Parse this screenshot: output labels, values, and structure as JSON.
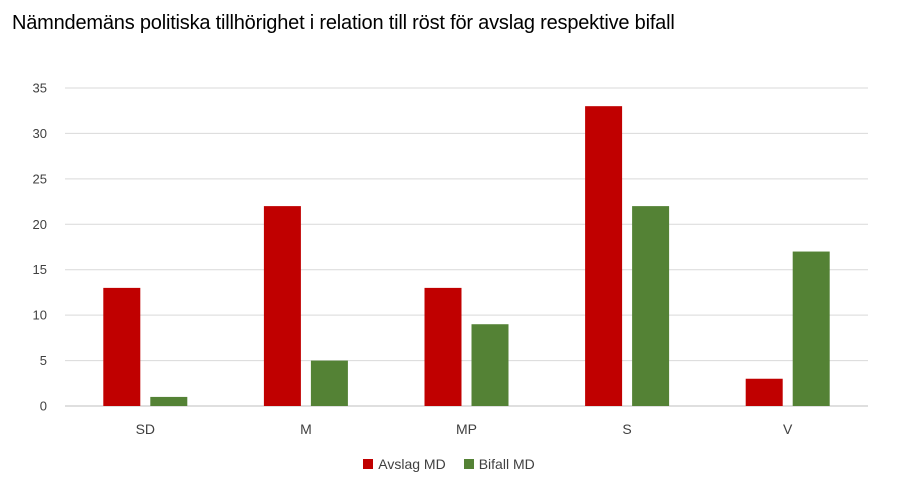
{
  "title": "Nämndemäns politiska tillhörighet i relation till röst för avslag respektive bifall",
  "chart_data": {
    "type": "bar",
    "title": "Nämndemäns politiska tillhörighet i relation till röst för avslag respektive bifall",
    "categories": [
      "SD",
      "M",
      "MP",
      "S",
      "V"
    ],
    "series": [
      {
        "name": "Avslag MD",
        "color": "#C00000",
        "values": [
          13,
          22,
          13,
          33,
          3
        ]
      },
      {
        "name": "Bifall MD",
        "color": "#548235",
        "values": [
          1,
          5,
          9,
          22,
          17
        ]
      }
    ],
    "ylim": [
      0,
      35
    ],
    "yticks": [
      0,
      5,
      10,
      15,
      20,
      25,
      30,
      35
    ],
    "grid": true,
    "legend_position": "bottom"
  }
}
